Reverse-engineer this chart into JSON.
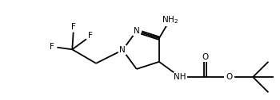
{
  "bg_color": "#ffffff",
  "line_color": "#000000",
  "line_width": 1.3,
  "font_size": 7.5,
  "fig_width": 3.5,
  "fig_height": 1.26,
  "dpi": 100,
  "xlim": [
    0,
    10
  ],
  "ylim": [
    0,
    3.6
  ]
}
